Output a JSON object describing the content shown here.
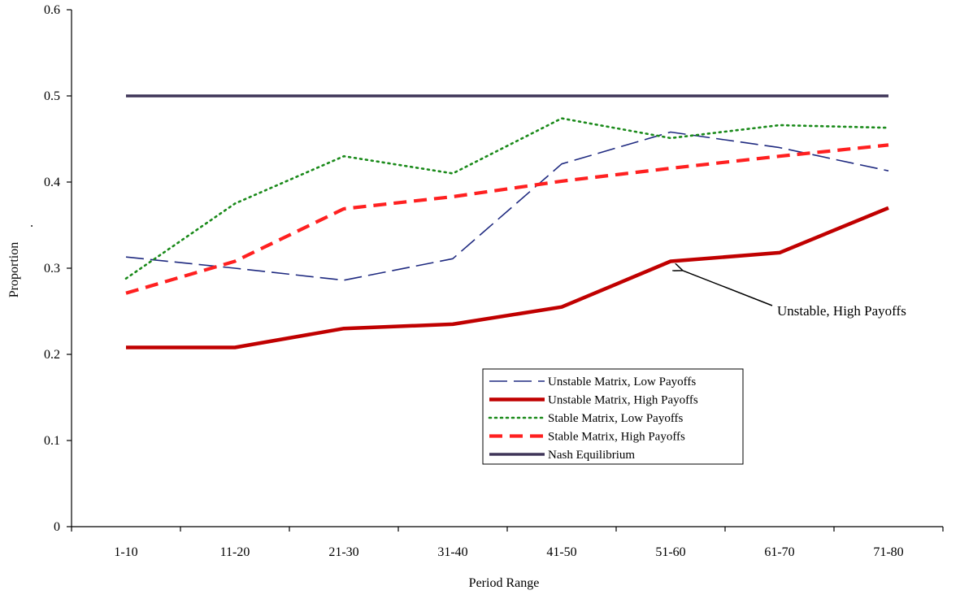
{
  "chart_data": {
    "type": "line",
    "title": "",
    "xlabel": "Period Range",
    "ylabel": "Proportion",
    "ylabel_suffix": ".",
    "categories": [
      "1-10",
      "11-20",
      "21-30",
      "31-40",
      "41-50",
      "51-60",
      "61-70",
      "71-80"
    ],
    "ylim": [
      0,
      0.6
    ],
    "yticks": [
      "0",
      "0.1",
      "0.2",
      "0.3",
      "0.4",
      "0.5",
      "0.6"
    ],
    "grid": false,
    "legend_placement": "bottom-right",
    "series": [
      {
        "name": "Unstable Matrix, Low Payoffs",
        "values": [
          0.313,
          0.3,
          0.286,
          0.311,
          0.421,
          0.458,
          0.44,
          0.413
        ],
        "color": "#1f2a80",
        "style": "dashed"
      },
      {
        "name": "Unstable Matrix, High Payoffs",
        "values": [
          0.208,
          0.208,
          0.23,
          0.235,
          0.255,
          0.308,
          0.318,
          0.37
        ],
        "color": "#c00000",
        "style": "solid-thick"
      },
      {
        "name": "Stable Matrix, Low Payoffs",
        "values": [
          0.288,
          0.375,
          0.43,
          0.41,
          0.474,
          0.451,
          0.466,
          0.463
        ],
        "color": "#1a8a1a",
        "style": "dotted"
      },
      {
        "name": "Stable Matrix, High Payoffs",
        "values": [
          0.271,
          0.308,
          0.369,
          0.383,
          0.401,
          0.416,
          0.43,
          0.443
        ],
        "color": "#ff2020",
        "style": "dashed-thick"
      },
      {
        "name": "Nash Equilibrium",
        "values": [
          0.5,
          0.5,
          0.5,
          0.5,
          0.5,
          0.5,
          0.5,
          0.5
        ],
        "color": "#3f3558",
        "style": "solid"
      }
    ],
    "annotations": [
      {
        "text": "Unstable, High Payoffs",
        "series": "Unstable Matrix, High Payoffs",
        "points_to_category": "51-60"
      }
    ]
  }
}
